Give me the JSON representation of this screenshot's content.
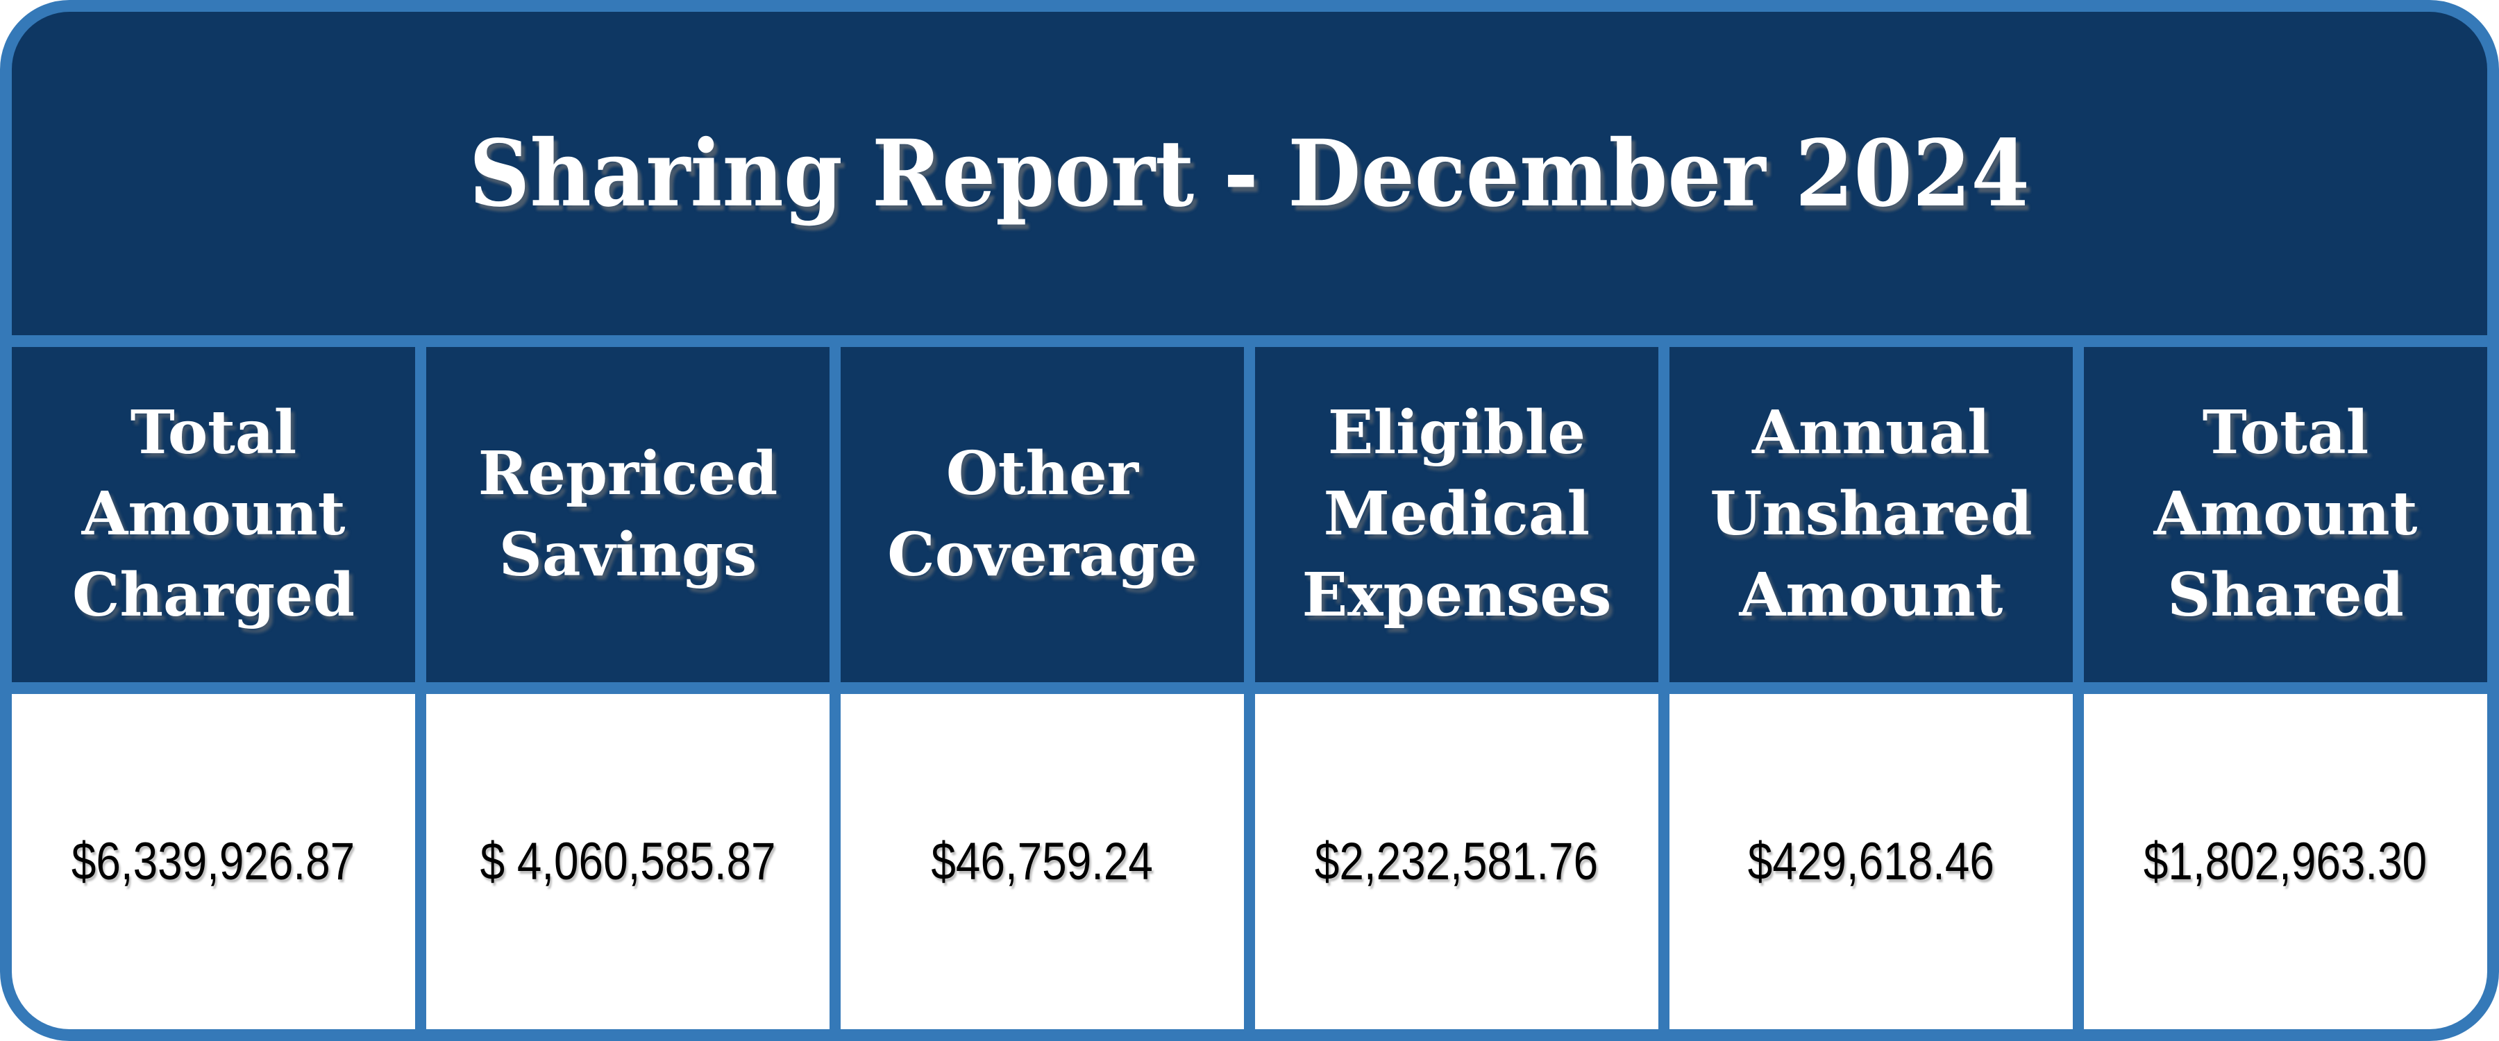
{
  "report": {
    "title": "Sharing Report - December 2024",
    "columns": [
      {
        "label": "Total\nAmount\nCharged",
        "value": "$6,339,926.87"
      },
      {
        "label": "Repriced\nSavings",
        "value": "$ 4,060,585.87"
      },
      {
        "label": "Other\nCoverage",
        "value": "$46,759.24"
      },
      {
        "label": "Eligible\nMedical\nExpenses",
        "value": "$2,232,581.76"
      },
      {
        "label": "Annual\nUnshared\nAmount",
        "value": "$429,618.46"
      },
      {
        "label": "Total\nAmount\nShared",
        "value": "$1,802,963.30"
      }
    ],
    "colors": {
      "navy": "#0e3763",
      "accent_blue": "#3579b8",
      "cell_bg": "#ffffff",
      "header_text": "#ffffff",
      "value_text": "#000000"
    }
  },
  "chart_data": {
    "type": "table",
    "title": "Sharing Report - December 2024",
    "columns": [
      "Total Amount Charged",
      "Repriced Savings",
      "Other Coverage",
      "Eligible Medical Expenses",
      "Annual Unshared Amount",
      "Total Amount Shared"
    ],
    "values_formatted": [
      "$6,339,926.87",
      "$ 4,060,585.87",
      "$46,759.24",
      "$2,232,581.76",
      "$429,618.46",
      "$1,802,963.30"
    ],
    "values_numeric": [
      6339926.87,
      4060585.87,
      46759.24,
      2232581.76,
      429618.46,
      1802963.3
    ]
  }
}
